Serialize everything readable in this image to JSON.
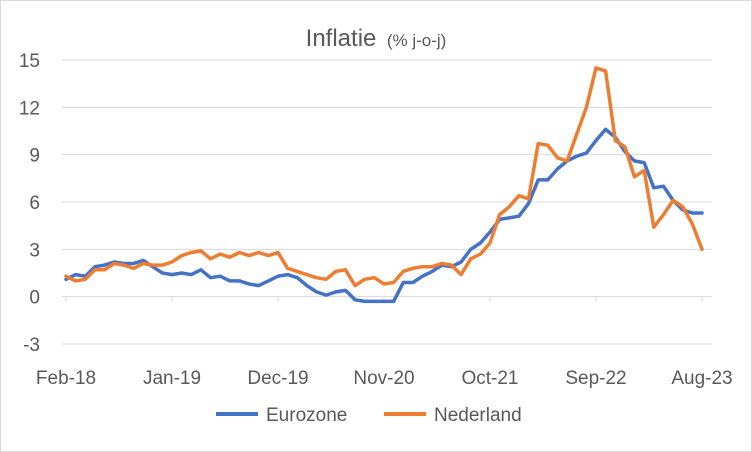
{
  "chart_data": {
    "type": "line",
    "title": "Inflatie",
    "subtitle": "(% j-o-j)",
    "xlabel": "",
    "ylabel": "",
    "ylim": [
      -3,
      15
    ],
    "yticks": [
      -3,
      0,
      3,
      6,
      9,
      12,
      15
    ],
    "ytick_labels": [
      "-3",
      "0",
      "3",
      "6",
      "9",
      "12",
      "15"
    ],
    "grid": true,
    "legend_position": "bottom",
    "x": [
      "Feb-18",
      "Mar-18",
      "Apr-18",
      "May-18",
      "Jun-18",
      "Jul-18",
      "Aug-18",
      "Sep-18",
      "Oct-18",
      "Nov-18",
      "Dec-18",
      "Jan-19",
      "Feb-19",
      "Mar-19",
      "Apr-19",
      "May-19",
      "Jun-19",
      "Jul-19",
      "Aug-19",
      "Sep-19",
      "Oct-19",
      "Nov-19",
      "Dec-19",
      "Jan-20",
      "Feb-20",
      "Mar-20",
      "Apr-20",
      "May-20",
      "Jun-20",
      "Jul-20",
      "Aug-20",
      "Sep-20",
      "Oct-20",
      "Nov-20",
      "Dec-20",
      "Jan-21",
      "Feb-21",
      "Mar-21",
      "Apr-21",
      "May-21",
      "Jun-21",
      "Jul-21",
      "Aug-21",
      "Sep-21",
      "Oct-21",
      "Nov-21",
      "Dec-21",
      "Jan-22",
      "Feb-22",
      "Mar-22",
      "Apr-22",
      "May-22",
      "Jun-22",
      "Jul-22",
      "Aug-22",
      "Sep-22",
      "Oct-22",
      "Nov-22",
      "Dec-22",
      "Jan-23",
      "Feb-23",
      "Mar-23",
      "Apr-23",
      "May-23",
      "Jun-23",
      "Jul-23",
      "Aug-23"
    ],
    "xtick_labels": [
      "Feb-18",
      "Jan-19",
      "Dec-19",
      "Nov-20",
      "Oct-21",
      "Sep-22",
      "Aug-23"
    ],
    "xtick_indices": [
      0,
      11,
      22,
      33,
      44,
      55,
      66
    ],
    "series": [
      {
        "name": "Eurozone",
        "color": "#4472c4",
        "values": [
          1.1,
          1.4,
          1.3,
          1.9,
          2.0,
          2.2,
          2.1,
          2.1,
          2.3,
          1.9,
          1.5,
          1.4,
          1.5,
          1.4,
          1.7,
          1.2,
          1.3,
          1.0,
          1.0,
          0.8,
          0.7,
          1.0,
          1.3,
          1.4,
          1.2,
          0.7,
          0.3,
          0.1,
          0.3,
          0.4,
          -0.2,
          -0.3,
          -0.3,
          -0.3,
          -0.3,
          0.9,
          0.9,
          1.3,
          1.6,
          2.0,
          1.9,
          2.2,
          3.0,
          3.4,
          4.1,
          4.9,
          5.0,
          5.1,
          5.9,
          7.4,
          7.4,
          8.1,
          8.6,
          8.9,
          9.1,
          9.9,
          10.6,
          10.1,
          9.2,
          8.6,
          8.5,
          6.9,
          7.0,
          6.1,
          5.5,
          5.3,
          5.3
        ]
      },
      {
        "name": "Nederland",
        "color": "#ed7d31",
        "values": [
          1.3,
          1.0,
          1.1,
          1.7,
          1.7,
          2.1,
          2.0,
          1.8,
          2.1,
          2.0,
          2.0,
          2.2,
          2.6,
          2.8,
          2.9,
          2.4,
          2.7,
          2.5,
          2.8,
          2.6,
          2.8,
          2.6,
          2.8,
          1.8,
          1.6,
          1.4,
          1.2,
          1.1,
          1.6,
          1.7,
          0.7,
          1.1,
          1.2,
          0.8,
          0.9,
          1.6,
          1.8,
          1.9,
          1.9,
          2.1,
          2.0,
          1.4,
          2.4,
          2.7,
          3.4,
          5.2,
          5.7,
          6.4,
          6.2,
          9.7,
          9.6,
          8.8,
          8.6,
          10.3,
          12.0,
          14.5,
          14.3,
          9.9,
          9.5,
          7.6,
          8.0,
          4.4,
          5.2,
          6.1,
          5.7,
          4.6,
          3.0
        ]
      }
    ]
  }
}
